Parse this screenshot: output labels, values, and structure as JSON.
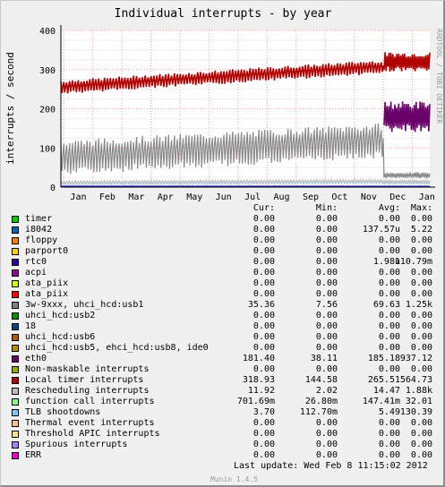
{
  "chart_data": {
    "type": "line",
    "title": "Individual interrupts - by year",
    "ylabel": "interrupts / second",
    "watermark": "RRDTOOL / TOBI OETIKER",
    "ylim": [
      0,
      400
    ],
    "yticks": [
      "0",
      "100",
      "200",
      "300",
      "400"
    ],
    "xticks": [
      "Jan",
      "Feb",
      "Mar",
      "Apr",
      "May",
      "Jun",
      "Jul",
      "Aug",
      "Sep",
      "Oct",
      "Nov",
      "Dec",
      "Jan"
    ],
    "grid": true,
    "series": [
      {
        "name": "Local timer interrupts",
        "color": "#b00000",
        "base": 255,
        "spread": 18,
        "trend": 60,
        "after_dec": 320,
        "after_dec_spread": 25
      },
      {
        "name": "3w-9xxx, uhci_hcd:usb1",
        "color": "#888888",
        "base": 75,
        "spread": 45,
        "trend": 50,
        "after_dec": 30,
        "after_dec_spread": 8
      },
      {
        "name": "function call interrupts",
        "color": "#6a006a",
        "base": 0,
        "spread": 0,
        "trend": 0,
        "after_dec": 180,
        "after_dec_spread": 40
      },
      {
        "name": "TLB shootdowns",
        "color": "#b8d8f0",
        "base": 8,
        "spread": 4,
        "trend": 4,
        "after_dec": 10,
        "after_dec_spread": 3
      },
      {
        "name": "Rescheduling interrupts",
        "color": "#c0c0c0",
        "base": 12,
        "spread": 5,
        "trend": 4,
        "after_dec": 14,
        "after_dec_spread": 4
      },
      {
        "name": "eth0",
        "color": "#e04040",
        "base": 2,
        "spread": 1,
        "trend": 0,
        "after_dec": 2,
        "after_dec_spread": 1
      }
    ]
  },
  "legend_header": {
    "cur": "Cur:",
    "min": "Min:",
    "avg": "Avg:",
    "max": "Max:"
  },
  "legend": [
    {
      "name": "timer",
      "color": "#00cc00",
      "cur": "0.00",
      "min": "0.00",
      "avg": "0.00",
      "max": "0.00"
    },
    {
      "name": "i8042",
      "color": "#0066b3",
      "cur": "0.00",
      "min": "0.00",
      "avg": "137.57u",
      "max": "5.22"
    },
    {
      "name": "floppy",
      "color": "#ff8000",
      "cur": "0.00",
      "min": "0.00",
      "avg": "0.00",
      "max": "0.00"
    },
    {
      "name": "parport0",
      "color": "#ffcc00",
      "cur": "0.00",
      "min": "0.00",
      "avg": "0.00",
      "max": "0.00"
    },
    {
      "name": "rtc0",
      "color": "#330099",
      "cur": "0.00",
      "min": "0.00",
      "avg": "1.98u",
      "max": "110.79m"
    },
    {
      "name": "acpi",
      "color": "#990099",
      "cur": "0.00",
      "min": "0.00",
      "avg": "0.00",
      "max": "0.00"
    },
    {
      "name": "ata_piix",
      "color": "#ccff00",
      "cur": "0.00",
      "min": "0.00",
      "avg": "0.00",
      "max": "0.00"
    },
    {
      "name": "ata_piix",
      "color": "#ff0000",
      "cur": "0.00",
      "min": "0.00",
      "avg": "0.00",
      "max": "0.00"
    },
    {
      "name": "3w-9xxx, uhci_hcd:usb1",
      "color": "#808080",
      "cur": "35.36",
      "min": "7.56",
      "avg": "69.63",
      "max": "1.25k"
    },
    {
      "name": "uhci_hcd:usb2",
      "color": "#008f00",
      "cur": "0.00",
      "min": "0.00",
      "avg": "0.00",
      "max": "0.00"
    },
    {
      "name": "18",
      "color": "#00487d",
      "cur": "0.00",
      "min": "0.00",
      "avg": "0.00",
      "max": "0.00"
    },
    {
      "name": "uhci_hcd:usb6",
      "color": "#b35a00",
      "cur": "0.00",
      "min": "0.00",
      "avg": "0.00",
      "max": "0.00"
    },
    {
      "name": "uhci_hcd:usb5, ehci_hcd:usb8, ide0",
      "color": "#b38f00",
      "cur": "0.00",
      "min": "0.00",
      "avg": "0.00",
      "max": "0.00"
    },
    {
      "name": "eth0",
      "color": "#6b006b",
      "cur": "181.40",
      "min": "38.11",
      "avg": "185.18",
      "max": "937.12"
    },
    {
      "name": "Non-maskable interrupts",
      "color": "#8fb300",
      "cur": "0.00",
      "min": "0.00",
      "avg": "0.00",
      "max": "0.00"
    },
    {
      "name": "Local timer interrupts",
      "color": "#b30000",
      "cur": "318.93",
      "min": "144.58",
      "avg": "265.51",
      "max": "564.73"
    },
    {
      "name": "Rescheduling interrupts",
      "color": "#bebebe",
      "cur": "11.92",
      "min": "2.02",
      "avg": "14.47",
      "max": "1.88k"
    },
    {
      "name": "function call interrupts",
      "color": "#80ff80",
      "cur": "701.69m",
      "min": "26.80m",
      "avg": "147.41m",
      "max": "32.01"
    },
    {
      "name": "TLB shootdowns",
      "color": "#80c9ff",
      "cur": "3.70",
      "min": "112.70m",
      "avg": "5.49",
      "max": "130.39"
    },
    {
      "name": "Thermal event interrupts",
      "color": "#ffc080",
      "cur": "0.00",
      "min": "0.00",
      "avg": "0.00",
      "max": "0.00"
    },
    {
      "name": "Threshold APIC interrupts",
      "color": "#ffe680",
      "cur": "0.00",
      "min": "0.00",
      "avg": "0.00",
      "max": "0.00"
    },
    {
      "name": "Spurious interrupts",
      "color": "#aa80ff",
      "cur": "0.00",
      "min": "0.00",
      "avg": "0.00",
      "max": "0.00"
    },
    {
      "name": "ERR",
      "color": "#ee00cc",
      "cur": "0.00",
      "min": "0.00",
      "avg": "0.00",
      "max": "0.00"
    }
  ],
  "footer": {
    "last_update": "Last update: Wed Feb  8 11:15:02 2012",
    "version": "Munin 1.4.5"
  }
}
